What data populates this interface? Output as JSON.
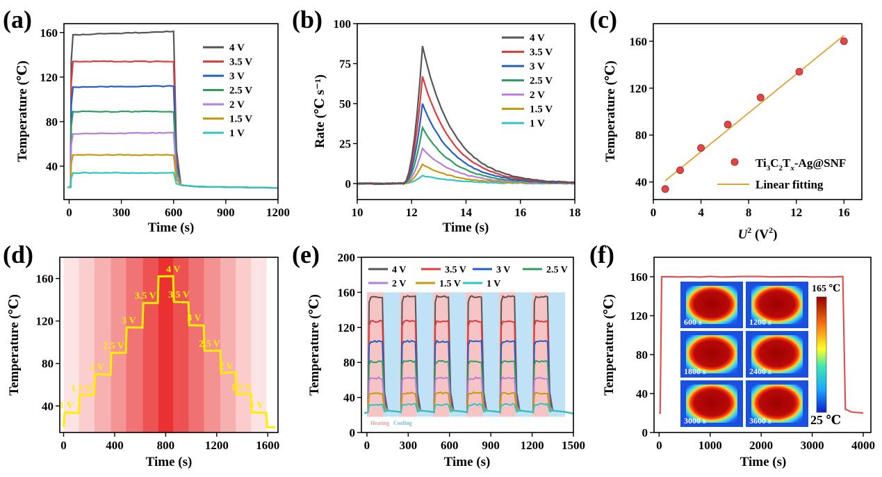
{
  "panels": [
    {
      "id": "a",
      "tag": "(a)",
      "type": "line",
      "xlabel": "Time (s)",
      "ylabel": "Temperature (℃)",
      "xlim": [
        -30,
        1200
      ],
      "ylim": [
        10,
        168
      ],
      "xticks": [
        0,
        300,
        600,
        900,
        1200
      ],
      "yticks": [
        40,
        80,
        120,
        160
      ],
      "legend": "top-right",
      "series": [
        {
          "name": "4 V",
          "color": "#555555",
          "plateau": 158,
          "end": 161
        },
        {
          "name": "3.5 V",
          "color": "#e03a3a",
          "plateau": 134,
          "end": 134
        },
        {
          "name": "3 V",
          "color": "#1f5fc4",
          "plateau": 111,
          "end": 112
        },
        {
          "name": "2.5 V",
          "color": "#2e9e5e",
          "plateau": 89,
          "end": 89
        },
        {
          "name": "2 V",
          "color": "#b57fd9",
          "plateau": 69,
          "end": 70
        },
        {
          "name": "1.5 V",
          "color": "#c49a0a",
          "plateau": 50,
          "end": 50
        },
        {
          "name": "1 V",
          "color": "#2ec4c4",
          "plateau": 34,
          "end": 34
        }
      ],
      "on_time": 10,
      "off_time": 612,
      "ambient": 21
    },
    {
      "id": "b",
      "tag": "(b)",
      "type": "line",
      "xlabel": "Time (s)",
      "ylabel": "Rate (℃ s⁻¹)",
      "xlim": [
        10,
        18
      ],
      "ylim": [
        -10,
        100
      ],
      "xticks": [
        10,
        12,
        14,
        16,
        18
      ],
      "yticks": [
        0,
        25,
        50,
        75,
        100
      ],
      "legend": "top-right",
      "series": [
        {
          "name": "4 V",
          "color": "#555555",
          "peak": 86
        },
        {
          "name": "3.5 V",
          "color": "#e03a3a",
          "peak": 67
        },
        {
          "name": "3 V",
          "color": "#1f5fc4",
          "peak": 50
        },
        {
          "name": "2.5 V",
          "color": "#2e9e5e",
          "peak": 35
        },
        {
          "name": "2 V",
          "color": "#b57fd9",
          "peak": 22
        },
        {
          "name": "1.5 V",
          "color": "#c49a0a",
          "peak": 12
        },
        {
          "name": "1 V",
          "color": "#2ec4c4",
          "peak": 5
        }
      ]
    },
    {
      "id": "c",
      "tag": "(c)",
      "type": "scatter",
      "xlabel_main": "U",
      "xlabel_sup": "2",
      "xlabel_rest": " (V",
      "xlabel_sup2": "2",
      "xlabel_end": ")",
      "ylabel": "Temperature (℃)",
      "xlim": [
        0,
        17.5
      ],
      "ylim": [
        25,
        175
      ],
      "xticks": [
        0,
        4,
        8,
        12,
        16
      ],
      "yticks": [
        40,
        80,
        120,
        160
      ],
      "points": [
        [
          1,
          34
        ],
        [
          2.25,
          50
        ],
        [
          4,
          69
        ],
        [
          6.25,
          89
        ],
        [
          9,
          112
        ],
        [
          12.25,
          134
        ],
        [
          16,
          160
        ]
      ],
      "fit": [
        [
          1,
          41
        ],
        [
          16,
          165
        ]
      ],
      "legend_point_label_parts": [
        "Ti",
        "3",
        "C",
        "2",
        "T",
        "x",
        "-Ag@SNF"
      ],
      "legend_line_label": "Linear fitting",
      "point_color": "#e04848",
      "fit_color": "#e0a030"
    },
    {
      "id": "d",
      "tag": "(d)",
      "type": "step",
      "xlabel": "Time (s)",
      "ylabel": "Temperature (℃)",
      "xlim": [
        -30,
        1680
      ],
      "ylim": [
        15,
        180
      ],
      "xticks": [
        0,
        400,
        800,
        1200,
        1600
      ],
      "yticks": [
        40,
        80,
        120,
        160
      ],
      "line_color": "#ffee00",
      "steps": [
        {
          "label": "1 V",
          "start": 0,
          "end": 120,
          "temp": 34
        },
        {
          "label": "1.5 V",
          "start": 120,
          "end": 240,
          "temp": 50
        },
        {
          "label": "2 V",
          "start": 240,
          "end": 370,
          "temp": 70
        },
        {
          "label": "2.5 V",
          "start": 370,
          "end": 490,
          "temp": 90
        },
        {
          "label": "3 V",
          "start": 490,
          "end": 620,
          "temp": 114
        },
        {
          "label": "3.5 V",
          "start": 620,
          "end": 740,
          "temp": 137
        },
        {
          "label": "4 V",
          "start": 740,
          "end": 860,
          "temp": 162
        },
        {
          "label": "3.5 V",
          "start": 860,
          "end": 980,
          "temp": 138
        },
        {
          "label": "3 V",
          "start": 980,
          "end": 1100,
          "temp": 116
        },
        {
          "label": "2.5 V",
          "start": 1100,
          "end": 1230,
          "temp": 92
        },
        {
          "label": "2 V",
          "start": 1230,
          "end": 1350,
          "temp": 71
        },
        {
          "label": "1.5 V",
          "start": 1350,
          "end": 1470,
          "temp": 51
        },
        {
          "label": "1 V",
          "start": 1470,
          "end": 1590,
          "temp": 34
        }
      ],
      "tail_temp": 20,
      "tail_end": 1660
    },
    {
      "id": "e",
      "tag": "(e)",
      "type": "cyclic",
      "xlabel": "Time (s)",
      "ylabel": "Temperature (℃)",
      "xlim": [
        -40,
        1500
      ],
      "ylim": [
        0,
        200
      ],
      "xticks": [
        0,
        300,
        600,
        900,
        1200,
        1500
      ],
      "yticks": [
        0,
        40,
        80,
        120,
        160,
        200
      ],
      "legend": "top",
      "cycle_period": 240,
      "heat_duration": 120,
      "cycles": 6,
      "heating_label": "Heating",
      "cooling_label": "Cooling",
      "heating_color": "#f6c4c4",
      "cooling_color": "#bfe2f6",
      "series": [
        {
          "name": "4 V",
          "color": "#555555",
          "plateau": 155
        },
        {
          "name": "3.5 V",
          "color": "#e03a3a",
          "plateau": 127
        },
        {
          "name": "3 V",
          "color": "#1f5fc4",
          "plateau": 104
        },
        {
          "name": "2.5 V",
          "color": "#2e9e5e",
          "plateau": 81
        },
        {
          "name": "2 V",
          "color": "#b57fd9",
          "plateau": 62
        },
        {
          "name": "1.5 V",
          "color": "#c49a0a",
          "plateau": 45
        },
        {
          "name": "1 V",
          "color": "#2ec4c4",
          "plateau": 32
        }
      ],
      "ambient": 22
    },
    {
      "id": "f",
      "tag": "(f)",
      "type": "line",
      "xlabel": "Time (s)",
      "ylabel": "Temperature (℃)",
      "xlim": [
        -100,
        4150
      ],
      "ylim": [
        0,
        180
      ],
      "xticks": [
        0,
        1000,
        2000,
        3000,
        4000
      ],
      "yticks": [
        0,
        40,
        80,
        120,
        160
      ],
      "line_color": "#e05050",
      "plateau": 160,
      "ambient": 20,
      "on_time": 30,
      "off_time": 3620,
      "end_time": 4000,
      "thermal_labels": [
        "600 s",
        "1200 s",
        "1800 s",
        "2400 s",
        "3000 s",
        "3600 s"
      ],
      "colorbar_max": "165 ℃",
      "colorbar_min": "25 ℃"
    }
  ]
}
